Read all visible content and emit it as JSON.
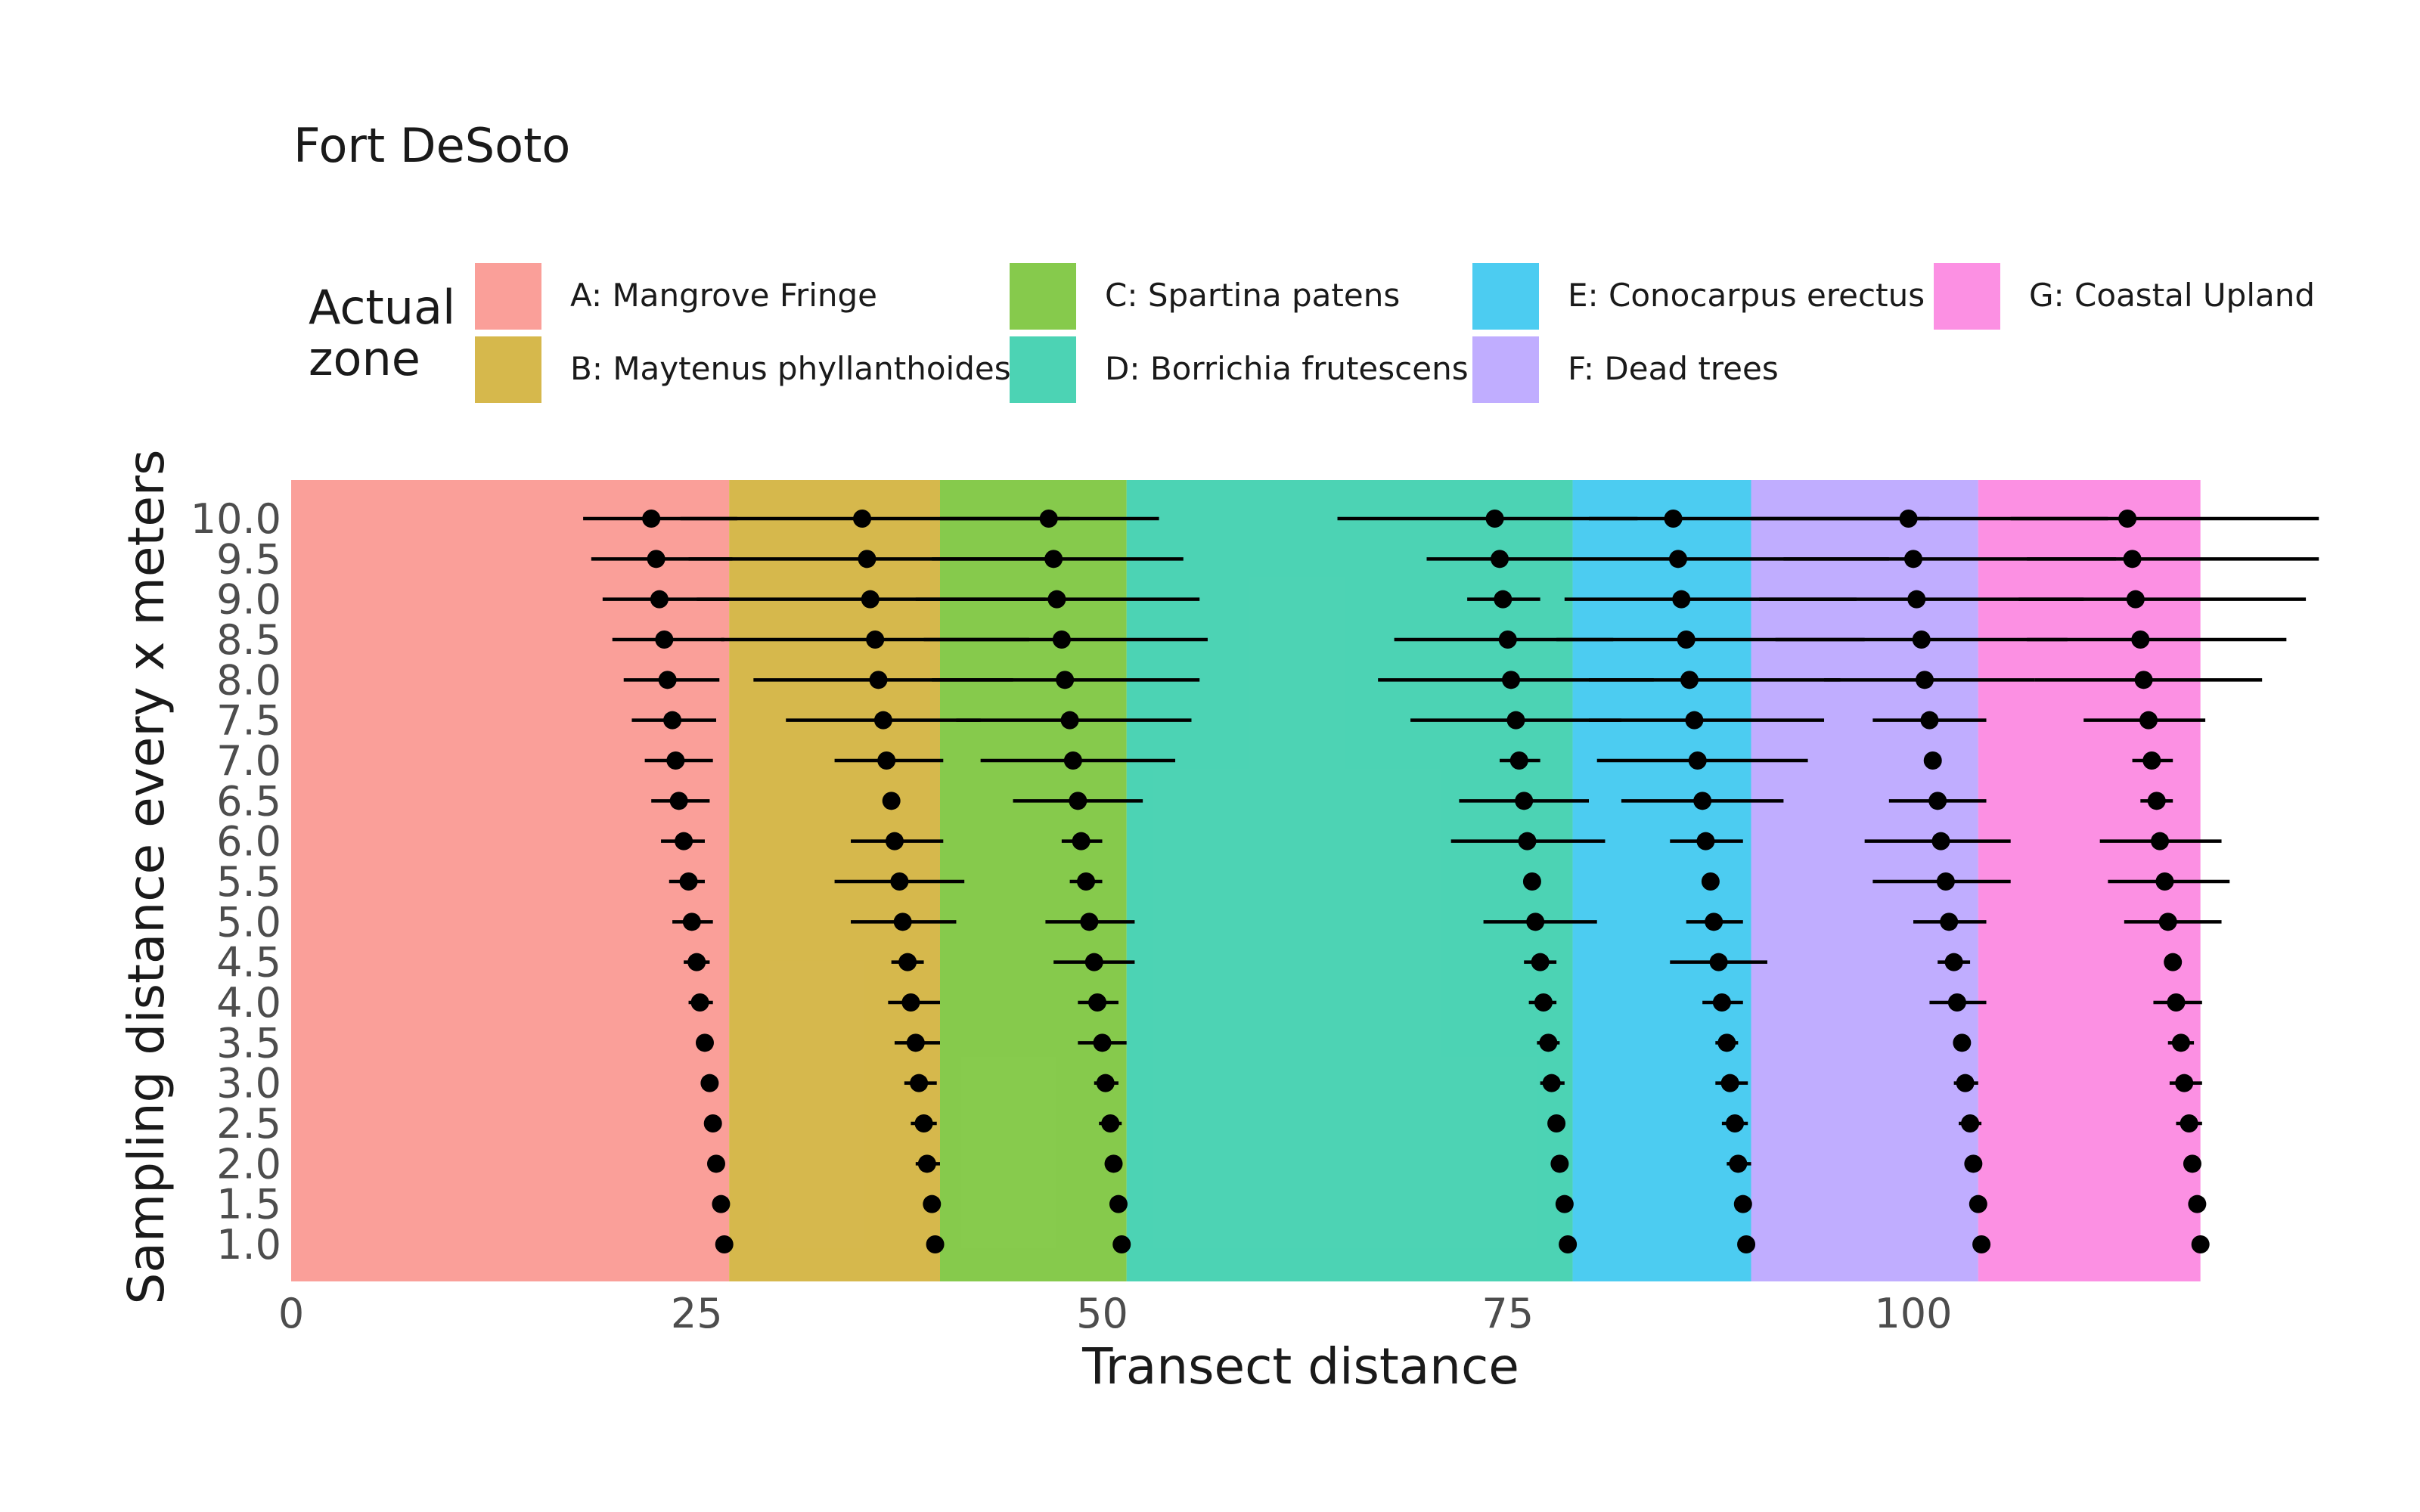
{
  "chart_data": {
    "type": "scatter",
    "title": "Fort DeSoto",
    "xlabel": "Transect distance",
    "ylabel": "Sampling distance every x meters",
    "xlim": [
      0,
      126
    ],
    "x_ticks": [
      "0",
      "25",
      "50",
      "75",
      "100"
    ],
    "x_tick_values": [
      0,
      25,
      50,
      75,
      100
    ],
    "y_categories": [
      "1.0",
      "1.5",
      "2.0",
      "2.5",
      "3.0",
      "3.5",
      "4.0",
      "4.5",
      "5.0",
      "5.5",
      "6.0",
      "6.5",
      "7.0",
      "7.5",
      "8.0",
      "8.5",
      "9.0",
      "9.5",
      "10.0"
    ],
    "grid": false,
    "legend": {
      "title": "Actual zone",
      "placement": "top",
      "entries": [
        {
          "label": "A: Mangrove Fringe",
          "color": "#F8766D"
        },
        {
          "label": "B: Maytenus phyllanthoides",
          "color": "#C49A00"
        },
        {
          "label": "C: Spartina patens",
          "color": "#53B400"
        },
        {
          "label": "D: Borrichia frutescens",
          "color": "#00C094"
        },
        {
          "label": "E: Conocarpus erectus",
          "color": "#00B6EB"
        },
        {
          "label": "F: Dead trees",
          "color": "#A58AFF"
        },
        {
          "label": "G: Coastal Upland",
          "color": "#FB61D7"
        }
      ]
    },
    "zones": [
      {
        "label": "A",
        "start": 0,
        "end": 27,
        "color": "#F8766D"
      },
      {
        "label": "B",
        "start": 27,
        "end": 40,
        "color": "#C49A00"
      },
      {
        "label": "C",
        "start": 40,
        "end": 51.5,
        "color": "#53B400"
      },
      {
        "label": "D",
        "start": 51.5,
        "end": 79,
        "color": "#00C094"
      },
      {
        "label": "E",
        "start": 79,
        "end": 90,
        "color": "#00B6EB"
      },
      {
        "label": "F",
        "start": 90,
        "end": 104,
        "color": "#A58AFF"
      },
      {
        "label": "G",
        "start": 104,
        "end": 117.7,
        "color": "#FB61D7"
      }
    ],
    "series": [
      {
        "boundary": "A|B",
        "points": [
          {
            "y": "1.0",
            "x": 26.7,
            "lo": 26.7,
            "hi": 26.7
          },
          {
            "y": "1.5",
            "x": 26.5,
            "lo": 26.5,
            "hi": 26.5
          },
          {
            "y": "2.0",
            "x": 26.2,
            "lo": 26.2,
            "hi": 26.2
          },
          {
            "y": "2.5",
            "x": 26.0,
            "lo": 26.0,
            "hi": 26.0
          },
          {
            "y": "3.0",
            "x": 25.8,
            "lo": 25.8,
            "hi": 25.8
          },
          {
            "y": "3.5",
            "x": 25.5,
            "lo": 25.0,
            "hi": 26.0
          },
          {
            "y": "4.0",
            "x": 25.2,
            "lo": 24.5,
            "hi": 26.0
          },
          {
            "y": "4.5",
            "x": 25.0,
            "lo": 24.2,
            "hi": 25.8
          },
          {
            "y": "5.0",
            "x": 24.7,
            "lo": 23.5,
            "hi": 26.0
          },
          {
            "y": "5.5",
            "x": 24.5,
            "lo": 23.3,
            "hi": 25.5
          },
          {
            "y": "6.0",
            "x": 24.2,
            "lo": 22.8,
            "hi": 25.5
          },
          {
            "y": "6.5",
            "x": 23.9,
            "lo": 22.2,
            "hi": 25.8
          },
          {
            "y": "7.0",
            "x": 23.7,
            "lo": 21.8,
            "hi": 26.0
          },
          {
            "y": "7.5",
            "x": 23.5,
            "lo": 21.0,
            "hi": 26.2
          },
          {
            "y": "8.0",
            "x": 23.2,
            "lo": 20.5,
            "hi": 26.4
          },
          {
            "y": "8.5",
            "x": 23.0,
            "lo": 19.8,
            "hi": 26.7
          },
          {
            "y": "9.0",
            "x": 22.7,
            "lo": 19.2,
            "hi": 27.0
          },
          {
            "y": "9.5",
            "x": 22.5,
            "lo": 18.5,
            "hi": 27.2
          },
          {
            "y": "10.0",
            "x": 22.2,
            "lo": 18.0,
            "hi": 27.5
          }
        ]
      },
      {
        "boundary": "B|C",
        "points": [
          {
            "y": "1.0",
            "x": 39.7,
            "lo": 39.7,
            "hi": 39.7
          },
          {
            "y": "1.5",
            "x": 39.5,
            "lo": 39.5,
            "hi": 39.5
          },
          {
            "y": "2.0",
            "x": 39.2,
            "lo": 38.5,
            "hi": 40.0
          },
          {
            "y": "2.5",
            "x": 39.0,
            "lo": 38.2,
            "hi": 39.8
          },
          {
            "y": "3.0",
            "x": 38.7,
            "lo": 37.8,
            "hi": 39.8
          },
          {
            "y": "3.5",
            "x": 38.5,
            "lo": 37.2,
            "hi": 40.0
          },
          {
            "y": "4.0",
            "x": 38.2,
            "lo": 36.8,
            "hi": 40.0
          },
          {
            "y": "4.5",
            "x": 38.0,
            "lo": 37.0,
            "hi": 39.0
          },
          {
            "y": "5.0",
            "x": 37.7,
            "lo": 34.5,
            "hi": 41.0
          },
          {
            "y": "5.5",
            "x": 37.5,
            "lo": 33.5,
            "hi": 41.5
          },
          {
            "y": "6.0",
            "x": 37.2,
            "lo": 34.5,
            "hi": 40.2
          },
          {
            "y": "6.5",
            "x": 37.0,
            "lo": 37.0,
            "hi": 37.0
          },
          {
            "y": "7.0",
            "x": 36.7,
            "lo": 33.5,
            "hi": 40.2
          },
          {
            "y": "7.5",
            "x": 36.5,
            "lo": 30.5,
            "hi": 42.5
          },
          {
            "y": "8.0",
            "x": 36.2,
            "lo": 28.5,
            "hi": 44.5
          },
          {
            "y": "8.5",
            "x": 36.0,
            "lo": 26.5,
            "hi": 45.5
          },
          {
            "y": "9.0",
            "x": 35.7,
            "lo": 25.0,
            "hi": 46.5
          },
          {
            "y": "9.5",
            "x": 35.5,
            "lo": 24.5,
            "hi": 47.5
          },
          {
            "y": "10.0",
            "x": 35.2,
            "lo": 24.0,
            "hi": 48.0
          }
        ]
      },
      {
        "boundary": "C|D",
        "points": [
          {
            "y": "1.0",
            "x": 51.2,
            "lo": 51.2,
            "hi": 51.2
          },
          {
            "y": "1.5",
            "x": 51.0,
            "lo": 51.0,
            "hi": 51.0
          },
          {
            "y": "2.0",
            "x": 50.7,
            "lo": 50.7,
            "hi": 50.7
          },
          {
            "y": "2.5",
            "x": 50.5,
            "lo": 49.8,
            "hi": 51.2
          },
          {
            "y": "3.0",
            "x": 50.2,
            "lo": 49.5,
            "hi": 51.0
          },
          {
            "y": "3.5",
            "x": 50.0,
            "lo": 48.5,
            "hi": 51.5
          },
          {
            "y": "4.0",
            "x": 49.7,
            "lo": 48.5,
            "hi": 51.0
          },
          {
            "y": "4.5",
            "x": 49.5,
            "lo": 47.0,
            "hi": 52.0
          },
          {
            "y": "5.0",
            "x": 49.2,
            "lo": 46.5,
            "hi": 52.0
          },
          {
            "y": "5.5",
            "x": 49.0,
            "lo": 48.0,
            "hi": 50.0
          },
          {
            "y": "6.0",
            "x": 48.7,
            "lo": 47.5,
            "hi": 50.0
          },
          {
            "y": "6.5",
            "x": 48.5,
            "lo": 44.5,
            "hi": 52.5
          },
          {
            "y": "7.0",
            "x": 48.2,
            "lo": 42.5,
            "hi": 54.5
          },
          {
            "y": "7.5",
            "x": 48.0,
            "lo": 41.0,
            "hi": 55.5
          },
          {
            "y": "8.0",
            "x": 47.7,
            "lo": 39.5,
            "hi": 56.0
          },
          {
            "y": "8.5",
            "x": 47.5,
            "lo": 39.0,
            "hi": 56.5
          },
          {
            "y": "9.0",
            "x": 47.2,
            "lo": 38.5,
            "hi": 56.0
          },
          {
            "y": "9.5",
            "x": 47.0,
            "lo": 39.5,
            "hi": 55.0
          },
          {
            "y": "10.0",
            "x": 46.7,
            "lo": 40.0,
            "hi": 53.5
          }
        ]
      },
      {
        "boundary": "D|E",
        "points": [
          {
            "y": "1.0",
            "x": 78.7,
            "lo": 78.7,
            "hi": 78.7
          },
          {
            "y": "1.5",
            "x": 78.5,
            "lo": 78.5,
            "hi": 78.5
          },
          {
            "y": "2.0",
            "x": 78.2,
            "lo": 78.2,
            "hi": 78.2
          },
          {
            "y": "2.5",
            "x": 78.0,
            "lo": 78.0,
            "hi": 78.0
          },
          {
            "y": "3.0",
            "x": 77.7,
            "lo": 77.0,
            "hi": 78.5
          },
          {
            "y": "3.5",
            "x": 77.5,
            "lo": 76.8,
            "hi": 78.2
          },
          {
            "y": "4.0",
            "x": 77.2,
            "lo": 76.3,
            "hi": 78.0
          },
          {
            "y": "4.5",
            "x": 77.0,
            "lo": 76.0,
            "hi": 78.0
          },
          {
            "y": "5.0",
            "x": 76.7,
            "lo": 73.5,
            "hi": 80.5
          },
          {
            "y": "5.5",
            "x": 76.5,
            "lo": 76.5,
            "hi": 76.5
          },
          {
            "y": "6.0",
            "x": 76.2,
            "lo": 71.5,
            "hi": 81.0
          },
          {
            "y": "6.5",
            "x": 76.0,
            "lo": 72.0,
            "hi": 80.0
          },
          {
            "y": "7.0",
            "x": 75.7,
            "lo": 74.5,
            "hi": 77.0
          },
          {
            "y": "7.5",
            "x": 75.5,
            "lo": 69.0,
            "hi": 82.0
          },
          {
            "y": "8.0",
            "x": 75.2,
            "lo": 67.0,
            "hi": 84.0
          },
          {
            "y": "8.5",
            "x": 75.0,
            "lo": 68.0,
            "hi": 81.5
          },
          {
            "y": "9.0",
            "x": 74.7,
            "lo": 72.5,
            "hi": 77.0
          },
          {
            "y": "9.5",
            "x": 74.5,
            "lo": 70.0,
            "hi": 79.0
          },
          {
            "y": "10.0",
            "x": 74.2,
            "lo": 64.5,
            "hi": 83.0
          }
        ]
      },
      {
        "boundary": "E|F",
        "points": [
          {
            "y": "1.0",
            "x": 89.7,
            "lo": 89.7,
            "hi": 89.7
          },
          {
            "y": "1.5",
            "x": 89.5,
            "lo": 89.5,
            "hi": 89.5
          },
          {
            "y": "2.0",
            "x": 89.2,
            "lo": 88.5,
            "hi": 90.0
          },
          {
            "y": "2.5",
            "x": 89.0,
            "lo": 88.2,
            "hi": 89.8
          },
          {
            "y": "3.0",
            "x": 88.7,
            "lo": 87.8,
            "hi": 89.8
          },
          {
            "y": "3.5",
            "x": 88.5,
            "lo": 87.8,
            "hi": 89.2
          },
          {
            "y": "4.0",
            "x": 88.2,
            "lo": 87.0,
            "hi": 89.5
          },
          {
            "y": "4.5",
            "x": 88.0,
            "lo": 85.0,
            "hi": 91.0
          },
          {
            "y": "5.0",
            "x": 87.7,
            "lo": 86.0,
            "hi": 89.5
          },
          {
            "y": "5.5",
            "x": 87.5,
            "lo": 87.5,
            "hi": 87.5
          },
          {
            "y": "6.0",
            "x": 87.2,
            "lo": 85.0,
            "hi": 89.5
          },
          {
            "y": "6.5",
            "x": 87.0,
            "lo": 82.0,
            "hi": 92.0
          },
          {
            "y": "7.0",
            "x": 86.7,
            "lo": 80.5,
            "hi": 93.5
          },
          {
            "y": "7.5",
            "x": 86.5,
            "lo": 80.0,
            "hi": 94.5
          },
          {
            "y": "8.0",
            "x": 86.2,
            "lo": 80.0,
            "hi": 95.5
          },
          {
            "y": "8.5",
            "x": 86.0,
            "lo": 78.0,
            "hi": 97.0
          },
          {
            "y": "9.0",
            "x": 85.7,
            "lo": 78.5,
            "hi": 96.5
          },
          {
            "y": "9.5",
            "x": 85.5,
            "lo": 79.0,
            "hi": 98.5
          },
          {
            "y": "10.0",
            "x": 85.2,
            "lo": 80.0,
            "hi": 101.0
          }
        ]
      },
      {
        "boundary": "F|G",
        "points": [
          {
            "y": "1.0",
            "x": 104.2,
            "lo": 104.2,
            "hi": 104.2
          },
          {
            "y": "1.5",
            "x": 104.0,
            "lo": 104.0,
            "hi": 104.0
          },
          {
            "y": "2.0",
            "x": 103.7,
            "lo": 103.7,
            "hi": 103.7
          },
          {
            "y": "2.5",
            "x": 103.5,
            "lo": 102.8,
            "hi": 104.2
          },
          {
            "y": "3.0",
            "x": 103.2,
            "lo": 102.5,
            "hi": 104.0
          },
          {
            "y": "3.5",
            "x": 103.0,
            "lo": 103.0,
            "hi": 103.0
          },
          {
            "y": "4.0",
            "x": 102.7,
            "lo": 101.0,
            "hi": 104.5
          },
          {
            "y": "4.5",
            "x": 102.5,
            "lo": 101.5,
            "hi": 103.5
          },
          {
            "y": "5.0",
            "x": 102.2,
            "lo": 100.0,
            "hi": 104.5
          },
          {
            "y": "5.5",
            "x": 102.0,
            "lo": 97.5,
            "hi": 106.0
          },
          {
            "y": "6.0",
            "x": 101.7,
            "lo": 97.0,
            "hi": 106.0
          },
          {
            "y": "6.5",
            "x": 101.5,
            "lo": 98.5,
            "hi": 104.5
          },
          {
            "y": "7.0",
            "x": 101.2,
            "lo": 101.2,
            "hi": 101.2
          },
          {
            "y": "7.5",
            "x": 101.0,
            "lo": 97.5,
            "hi": 104.5
          },
          {
            "y": "8.0",
            "x": 100.7,
            "lo": 94.5,
            "hi": 107.5
          },
          {
            "y": "8.5",
            "x": 100.5,
            "lo": 91.5,
            "hi": 109.5
          },
          {
            "y": "9.0",
            "x": 100.2,
            "lo": 90.5,
            "hi": 110.5
          },
          {
            "y": "9.5",
            "x": 100.0,
            "lo": 92.0,
            "hi": 112.5
          },
          {
            "y": "10.0",
            "x": 99.7,
            "lo": 90.0,
            "hi": 112.0
          }
        ]
      },
      {
        "boundary": "G|end",
        "points": [
          {
            "y": "1.0",
            "x": 117.7,
            "lo": 117.7,
            "hi": 117.7
          },
          {
            "y": "1.5",
            "x": 117.5,
            "lo": 117.5,
            "hi": 117.5
          },
          {
            "y": "2.0",
            "x": 117.2,
            "lo": 117.2,
            "hi": 117.2
          },
          {
            "y": "2.5",
            "x": 117.0,
            "lo": 116.2,
            "hi": 117.8
          },
          {
            "y": "3.0",
            "x": 116.7,
            "lo": 115.8,
            "hi": 117.8
          },
          {
            "y": "3.5",
            "x": 116.5,
            "lo": 115.7,
            "hi": 117.3
          },
          {
            "y": "4.0",
            "x": 116.2,
            "lo": 114.8,
            "hi": 117.8
          },
          {
            "y": "4.5",
            "x": 116.0,
            "lo": 116.0,
            "hi": 116.0
          },
          {
            "y": "5.0",
            "x": 115.7,
            "lo": 113.0,
            "hi": 119.0
          },
          {
            "y": "5.5",
            "x": 115.5,
            "lo": 112.0,
            "hi": 119.5
          },
          {
            "y": "6.0",
            "x": 115.2,
            "lo": 111.5,
            "hi": 119.0
          },
          {
            "y": "6.5",
            "x": 115.0,
            "lo": 114.0,
            "hi": 116.0
          },
          {
            "y": "7.0",
            "x": 114.7,
            "lo": 113.5,
            "hi": 116.0
          },
          {
            "y": "7.5",
            "x": 114.5,
            "lo": 110.5,
            "hi": 118.0
          },
          {
            "y": "8.0",
            "x": 114.2,
            "lo": 107.5,
            "hi": 121.5
          },
          {
            "y": "8.5",
            "x": 114.0,
            "lo": 107.0,
            "hi": 123.0
          },
          {
            "y": "9.0",
            "x": 113.7,
            "lo": 106.5,
            "hi": 124.2
          },
          {
            "y": "9.5",
            "x": 113.5,
            "lo": 107.0,
            "hi": 125.0
          },
          {
            "y": "10.0",
            "x": 113.2,
            "lo": 106.0,
            "hi": 125.0
          }
        ]
      }
    ]
  }
}
